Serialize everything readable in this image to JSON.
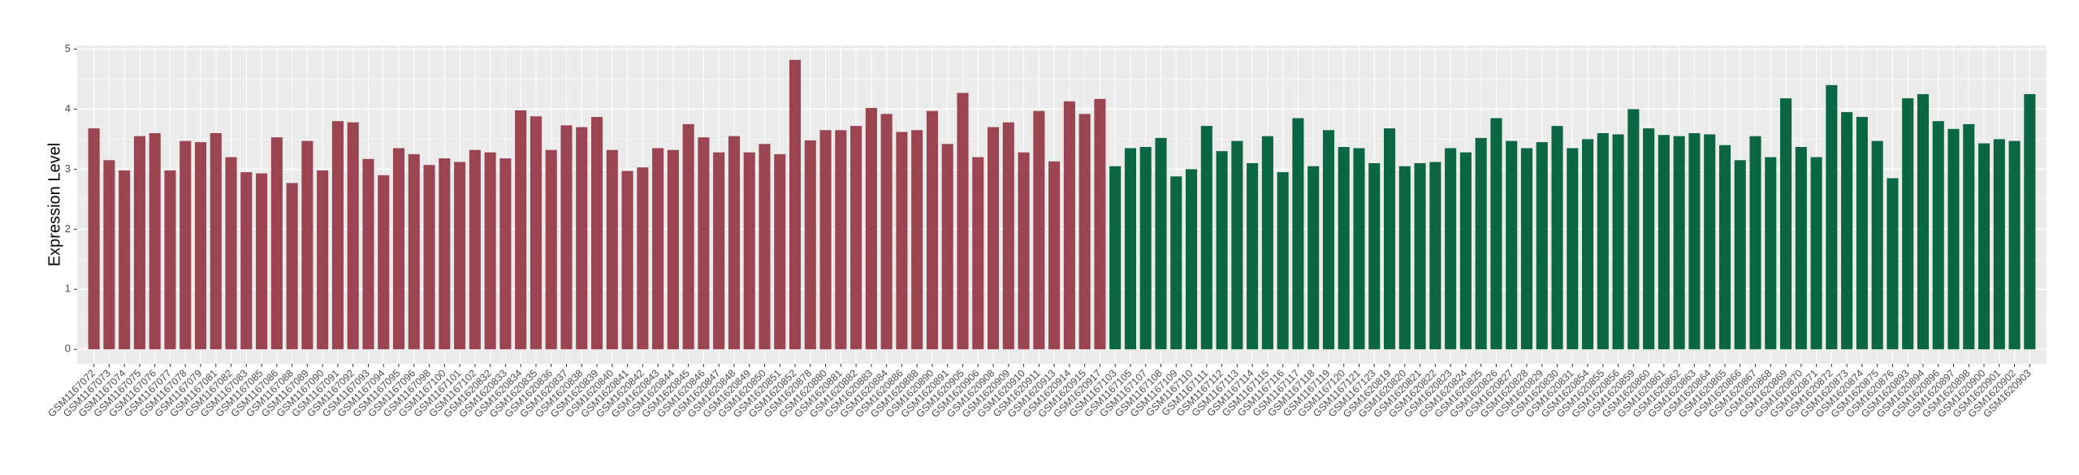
{
  "chart_data": {
    "type": "bar",
    "y_label": "Expression Level",
    "categories": [
      "GSM1167072",
      "GSM1167073",
      "GSM1167074",
      "GSM1167075",
      "GSM1167076",
      "GSM1167077",
      "GSM1167078",
      "GSM1167079",
      "GSM1167081",
      "GSM1167082",
      "GSM1167083",
      "GSM1167085",
      "GSM1167086",
      "GSM1167088",
      "GSM1167089",
      "GSM1167090",
      "GSM1167091",
      "GSM1167092",
      "GSM1167093",
      "GSM1167094",
      "GSM1167095",
      "GSM1167096",
      "GSM1167098",
      "GSM1167100",
      "GSM1167101",
      "GSM1167102",
      "GSM1620832",
      "GSM1620833",
      "GSM1620834",
      "GSM1620835",
      "GSM1620836",
      "GSM1620837",
      "GSM1620838",
      "GSM1620839",
      "GSM1620840",
      "GSM1620841",
      "GSM1620842",
      "GSM1620843",
      "GSM1620844",
      "GSM1620845",
      "GSM1620846",
      "GSM1620847",
      "GSM1620848",
      "GSM1620849",
      "GSM1620850",
      "GSM1620851",
      "GSM1620852",
      "GSM1620878",
      "GSM1620880",
      "GSM1620881",
      "GSM1620882",
      "GSM1620883",
      "GSM1620884",
      "GSM1620886",
      "GSM1620888",
      "GSM1620890",
      "GSM1620891",
      "GSM1620905",
      "GSM1620906",
      "GSM1620908",
      "GSM1620909",
      "GSM1620910",
      "GSM1620911",
      "GSM1620913",
      "GSM1620914",
      "GSM1620915",
      "GSM1620917",
      "GSM1167103",
      "GSM1167105",
      "GSM1167107",
      "GSM1167108",
      "GSM1167109",
      "GSM1167110",
      "GSM1167111",
      "GSM1167112",
      "GSM1167113",
      "GSM1167114",
      "GSM1167115",
      "GSM1167116",
      "GSM1167117",
      "GSM1167118",
      "GSM1167119",
      "GSM1167120",
      "GSM1167121",
      "GSM1167123",
      "GSM1620819",
      "GSM1620820",
      "GSM1620821",
      "GSM1620822",
      "GSM1620823",
      "GSM1620824",
      "GSM1620825",
      "GSM1620826",
      "GSM1620827",
      "GSM1620828",
      "GSM1620829",
      "GSM1620830",
      "GSM1620831",
      "GSM1620854",
      "GSM1620855",
      "GSM1620856",
      "GSM1620859",
      "GSM1620860",
      "GSM1620861",
      "GSM1620862",
      "GSM1620863",
      "GSM1620864",
      "GSM1620865",
      "GSM1620866",
      "GSM1620867",
      "GSM1620868",
      "GSM1620869",
      "GSM1620870",
      "GSM1620871",
      "GSM1620872",
      "GSM1620873",
      "GSM1620874",
      "GSM1620875",
      "GSM1620876",
      "GSM1620893",
      "GSM1620894",
      "GSM1620896",
      "GSM1620897",
      "GSM1620898",
      "GSM1620900",
      "GSM1620901",
      "GSM1620902",
      "GSM1620903"
    ],
    "values": [
      3.68,
      3.15,
      2.98,
      3.55,
      3.6,
      2.98,
      3.47,
      3.45,
      3.6,
      3.2,
      2.95,
      2.93,
      3.53,
      2.77,
      3.47,
      2.98,
      3.8,
      3.78,
      3.17,
      2.9,
      3.35,
      3.25,
      3.07,
      3.18,
      3.12,
      3.32,
      3.28,
      3.18,
      3.98,
      3.88,
      3.32,
      3.73,
      3.7,
      3.87,
      3.32,
      2.97,
      3.03,
      3.35,
      3.32,
      3.75,
      3.53,
      3.28,
      3.55,
      3.28,
      3.42,
      3.25,
      4.82,
      3.48,
      3.65,
      3.65,
      3.72,
      4.02,
      3.92,
      3.62,
      3.65,
      3.97,
      3.42,
      4.27,
      3.2,
      3.7,
      3.78,
      3.28,
      3.97,
      3.13,
      4.13,
      3.92,
      4.17,
      3.05,
      3.35,
      3.37,
      3.52,
      2.88,
      3.0,
      3.72,
      3.3,
      3.47,
      3.1,
      3.55,
      2.95,
      3.85,
      3.05,
      3.65,
      3.37,
      3.35,
      3.1,
      3.68,
      3.05,
      3.1,
      3.12,
      3.35,
      3.28,
      3.52,
      3.85,
      3.47,
      3.35,
      3.45,
      3.72,
      3.35,
      3.5,
      3.6,
      3.58,
      4.0,
      3.68,
      3.57,
      3.55,
      3.6,
      3.58,
      3.4,
      3.15,
      3.55,
      3.2,
      4.18,
      3.37,
      3.2,
      4.4,
      3.95,
      3.87,
      3.47,
      2.85,
      4.18,
      4.25,
      3.8,
      3.67,
      3.75,
      3.43,
      3.5,
      3.47,
      4.25
    ],
    "colors": [
      "#9b4452",
      "#9b4452",
      "#9b4452",
      "#9b4452",
      "#9b4452",
      "#9b4452",
      "#9b4452",
      "#9b4452",
      "#9b4452",
      "#9b4452",
      "#9b4452",
      "#9b4452",
      "#9b4452",
      "#9b4452",
      "#9b4452",
      "#9b4452",
      "#9b4452",
      "#9b4452",
      "#9b4452",
      "#9b4452",
      "#9b4452",
      "#9b4452",
      "#9b4452",
      "#9b4452",
      "#9b4452",
      "#9b4452",
      "#9b4452",
      "#9b4452",
      "#9b4452",
      "#9b4452",
      "#9b4452",
      "#9b4452",
      "#9b4452",
      "#9b4452",
      "#9b4452",
      "#9b4452",
      "#9b4452",
      "#9b4452",
      "#9b4452",
      "#9b4452",
      "#9b4452",
      "#9b4452",
      "#9b4452",
      "#9b4452",
      "#9b4452",
      "#9b4452",
      "#9b4452",
      "#9b4452",
      "#9b4452",
      "#9b4452",
      "#9b4452",
      "#9b4452",
      "#9b4452",
      "#9b4452",
      "#9b4452",
      "#9b4452",
      "#9b4452",
      "#9b4452",
      "#9b4452",
      "#9b4452",
      "#9b4452",
      "#9b4452",
      "#9b4452",
      "#9b4452",
      "#9b4452",
      "#9b4452",
      "#9b4452",
      "#0b6743",
      "#0b6743",
      "#0b6743",
      "#0b6743",
      "#0b6743",
      "#0b6743",
      "#0b6743",
      "#0b6743",
      "#0b6743",
      "#0b6743",
      "#0b6743",
      "#0b6743",
      "#0b6743",
      "#0b6743",
      "#0b6743",
      "#0b6743",
      "#0b6743",
      "#0b6743",
      "#0b6743",
      "#0b6743",
      "#0b6743",
      "#0b6743",
      "#0b6743",
      "#0b6743",
      "#0b6743",
      "#0b6743",
      "#0b6743",
      "#0b6743",
      "#0b6743",
      "#0b6743",
      "#0b6743",
      "#0b6743",
      "#0b6743",
      "#0b6743",
      "#0b6743",
      "#0b6743",
      "#0b6743",
      "#0b6743",
      "#0b6743",
      "#0b6743",
      "#0b6743",
      "#0b6743",
      "#0b6743",
      "#0b6743",
      "#0b6743",
      "#0b6743",
      "#0b6743",
      "#0b6743",
      "#0b6743",
      "#0b6743",
      "#0b6743",
      "#0b6743",
      "#0b6743",
      "#0b6743",
      "#0b6743",
      "#0b6743",
      "#0b6743",
      "#0b6743",
      "#0b6743",
      "#0b6743",
      "#0b6743"
    ],
    "ylim": [
      -0.24,
      5.06
    ],
    "yticks": [
      0,
      1,
      2,
      3,
      4,
      5
    ],
    "grid": true
  }
}
